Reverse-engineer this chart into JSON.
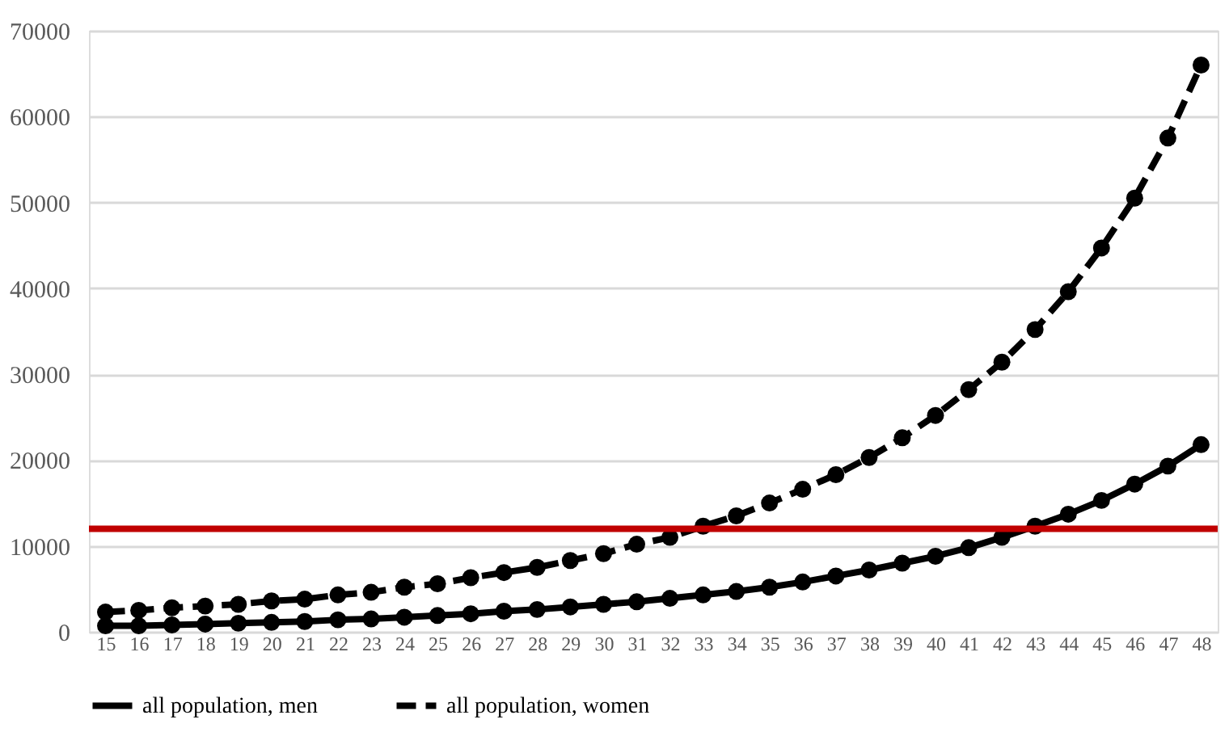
{
  "chart_data": {
    "type": "line",
    "categories": [
      "15",
      "16",
      "17",
      "18",
      "19",
      "20",
      "21",
      "22",
      "23",
      "24",
      "25",
      "26",
      "27",
      "28",
      "29",
      "30",
      "31",
      "32",
      "33",
      "34",
      "35",
      "36",
      "37",
      "38",
      "39",
      "40",
      "41",
      "42",
      "43",
      "44",
      "45",
      "46",
      "47",
      "48"
    ],
    "series": [
      {
        "name": "all population, men",
        "color": "#000000",
        "line_style": "solid",
        "values": [
          700,
          700,
          800,
          900,
          1000,
          1100,
          1200,
          1400,
          1500,
          1700,
          1900,
          2100,
          2400,
          2600,
          2900,
          3200,
          3500,
          3900,
          4300,
          4700,
          5200,
          5800,
          6500,
          7200,
          8000,
          8800,
          9800,
          11000,
          12300,
          13700,
          15300,
          17200,
          19300,
          21800
        ]
      },
      {
        "name": "all population, women",
        "color": "#000000",
        "line_style": "dashed",
        "values": [
          2300,
          2500,
          2800,
          3000,
          3200,
          3600,
          3800,
          4300,
          4600,
          5200,
          5600,
          6300,
          6900,
          7500,
          8300,
          9100,
          10200,
          11000,
          12300,
          13500,
          15000,
          16600,
          18300,
          20300,
          22600,
          25200,
          28200,
          31400,
          35200,
          39600,
          44700,
          50500,
          57500,
          66000
        ]
      }
    ],
    "ylim": [
      0,
      70000
    ],
    "yticks": [
      0,
      10000,
      20000,
      30000,
      40000,
      50000,
      60000,
      70000
    ],
    "ref_lines": [
      {
        "axis": "y",
        "value": 12000,
        "color": "#c00000"
      }
    ],
    "grid": "y",
    "legend": "bottom",
    "marker": "circle"
  }
}
